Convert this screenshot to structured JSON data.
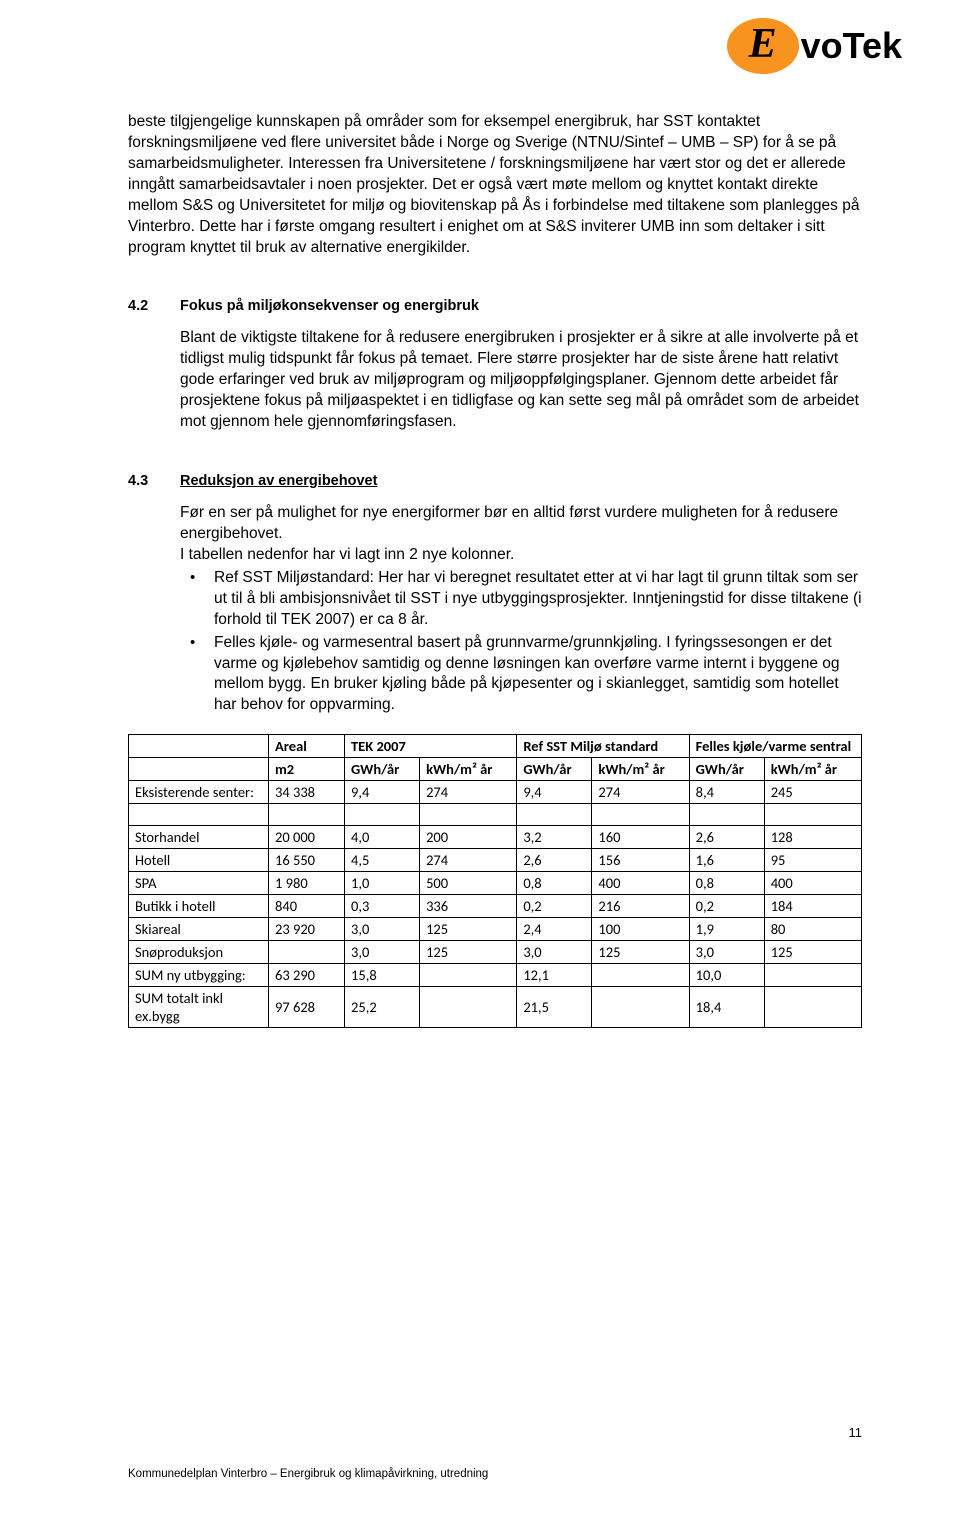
{
  "logo": {
    "mark_letter": "E",
    "wordmark": "voTek"
  },
  "intro_para": "beste tilgjengelige kunnskapen på områder som for eksempel energibruk, har SST kontaktet forskningsmiljøene ved flere universitet både i Norge og Sverige (NTNU/Sintef – UMB – SP) for å se på samarbeidsmuligheter. Interessen fra Universitetene / forskningsmiljøene har vært stor og det er allerede inngått samarbeidsavtaler i noen prosjekter. Det er også vært møte mellom og knyttet kontakt direkte mellom S&S og Universitetet for miljø og biovitenskap på Ås i forbindelse med tiltakene som planlegges på Vinterbro. Dette har i første omgang resultert i enighet om at S&S inviterer UMB inn som deltaker i sitt program knyttet til bruk av alternative energikilder.",
  "s42": {
    "num": "4.2",
    "title": "Fokus på miljøkonsekvenser og energibruk",
    "body": "Blant de viktigste tiltakene for å redusere energibruken i prosjekter er å sikre at alle involverte på et tidligst mulig tidspunkt får fokus på temaet. Flere større prosjekter har de siste årene hatt relativt gode erfaringer ved bruk av miljøprogram og miljøoppfølgingsplaner. Gjennom dette arbeidet får prosjektene fokus på miljøaspektet i en tidligfase og kan sette seg mål på området som de arbeidet mot gjennom hele gjennomføringsfasen."
  },
  "s43": {
    "num": "4.3",
    "title": "Reduksjon av energibehovet",
    "p1": "Før en ser på mulighet for nye energiformer bør en alltid først vurdere muligheten for å redusere energibehovet.",
    "p2": "I tabellen nedenfor har vi lagt inn 2 nye kolonner.",
    "b1": "Ref SST Miljøstandard: Her har vi beregnet resultatet etter at vi har lagt til grunn tiltak som ser ut til å bli ambisjonsnivået til SST i nye utbyggingsprosjekter. Inntjeningstid for disse tiltakene (i forhold til TEK 2007) er ca 8 år.",
    "b2": "Felles kjøle- og varmesentral basert på grunnvarme/grunnkjøling. I fyringssesongen er det varme og kjølebehov samtidig og denne løsningen kan overføre varme internt i byggene og mellom bygg. En bruker kjøling både på kjøpesenter og i skianlegget, samtidig som hotellet har behov for oppvarming."
  },
  "table": {
    "header_group": [
      "",
      "Areal",
      "TEK 2007",
      "",
      "Ref SST Miljø standard",
      "Felles kjøle/varme sentral"
    ],
    "header_units": [
      "",
      "m2",
      "GWh/år",
      "kWh/m² år",
      "GWh/år",
      "kWh/m² år",
      "GWh/år",
      "kWh/m² år"
    ],
    "rows": [
      [
        "Eksisterende senter:",
        "34 338",
        "9,4",
        "274",
        "9,4",
        "274",
        "8,4",
        "245"
      ],
      [
        "",
        "",
        "",
        "",
        "",
        "",
        "",
        ""
      ],
      [
        "Storhandel",
        "20 000",
        "4,0",
        "200",
        "3,2",
        "160",
        "2,6",
        "128"
      ],
      [
        "Hotell",
        "16 550",
        "4,5",
        "274",
        "2,6",
        "156",
        "1,6",
        "95"
      ],
      [
        "SPA",
        "1 980",
        "1,0",
        "500",
        "0,8",
        "400",
        "0,8",
        "400"
      ],
      [
        "Butikk i hotell",
        "840",
        "0,3",
        "336",
        "0,2",
        "216",
        "0,2",
        "184"
      ],
      [
        "Skiareal",
        "23 920",
        "3,0",
        "125",
        "2,4",
        "100",
        "1,9",
        "80"
      ],
      [
        "Snøproduksjon",
        "",
        "3,0",
        "125",
        "3,0",
        "125",
        "3,0",
        "125"
      ],
      [
        "SUM ny utbygging:",
        "63 290",
        "15,8",
        "",
        "12,1",
        "",
        "10,0",
        ""
      ],
      [
        "SUM totalt inkl ex.bygg",
        "97 628",
        "25,2",
        "",
        "21,5",
        "",
        "18,4",
        ""
      ]
    ]
  },
  "page_number": "11",
  "footer": "Kommunedelplan Vinterbro – Energibruk og klimapåvirkning, utredning"
}
